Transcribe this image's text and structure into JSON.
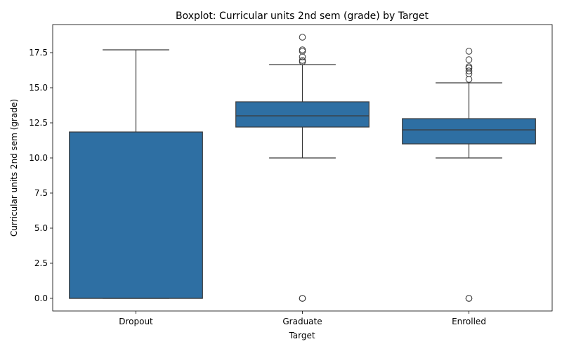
{
  "chart_data": {
    "type": "box",
    "title": "Boxplot: Curricular units 2nd sem (grade) by Target",
    "xlabel": "Target",
    "ylabel": "Curricular units 2nd sem (grade)",
    "ylim": [
      -0.9,
      19.5
    ],
    "yticks": [
      0.0,
      2.5,
      5.0,
      7.5,
      10.0,
      12.5,
      15.0,
      17.5
    ],
    "ytick_labels": [
      "0.0",
      "2.5",
      "5.0",
      "7.5",
      "10.0",
      "12.5",
      "15.0",
      "17.5"
    ],
    "grid": false,
    "legend": "none",
    "box_color": "#2e6fa3",
    "line_color": "#3b3b3b",
    "categories": [
      "Dropout",
      "Graduate",
      "Enrolled"
    ],
    "boxes": [
      {
        "category": "Dropout",
        "whisker_low": 0.0,
        "q1": 0.0,
        "median": 0.0,
        "q3": 11.85,
        "whisker_high": 17.7,
        "outliers": []
      },
      {
        "category": "Graduate",
        "whisker_low": 10.0,
        "q1": 12.2,
        "median": 13.0,
        "q3": 14.0,
        "whisker_high": 16.65,
        "outliers": [
          0.0,
          0.0,
          16.85,
          16.95,
          17.2,
          17.6,
          17.7,
          18.6
        ]
      },
      {
        "category": "Enrolled",
        "whisker_low": 10.0,
        "q1": 11.0,
        "median": 12.0,
        "q3": 12.8,
        "whisker_high": 15.35,
        "outliers": [
          0.0,
          0.0,
          15.6,
          16.0,
          16.2,
          16.4,
          16.5,
          17.0,
          17.6
        ]
      }
    ]
  }
}
